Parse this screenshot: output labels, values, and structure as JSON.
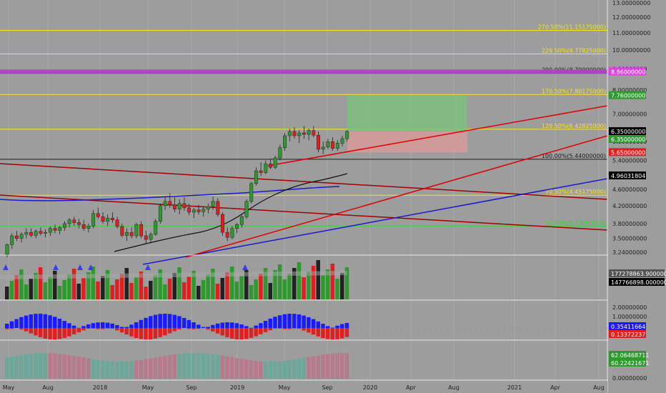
{
  "chart_data": {
    "type": "candlestick",
    "title": "",
    "price_axis": {
      "scale": "log",
      "range": [
        3.2,
        13.4
      ],
      "ticks": [
        "13.00000000",
        "12.00000000",
        "11.00000000",
        "10.00000000",
        "9.00000000",
        "8.00000000",
        "7.00000000",
        "6.00000000",
        "5.40000000",
        "4.60000000",
        "4.20000000",
        "3.80000000",
        "3.50000000",
        "3.24000000"
      ]
    },
    "time_axis": {
      "labels": [
        "May",
        "Aug",
        "2018",
        "May",
        "Sep",
        "2019",
        "May",
        "Sep",
        "2020",
        "Apr",
        "Aug",
        "2021",
        "Apr",
        "Aug"
      ]
    },
    "fib_levels": [
      {
        "label": "270.50%(11.15175000)",
        "value": 11.15175,
        "color": "#f5e61e"
      },
      {
        "label": "229.50%(9.77825000)",
        "value": 9.77825,
        "color": "#f5e61e"
      },
      {
        "label": "200.00%(8.79000000)",
        "value": 8.79,
        "color": "#1e1e1e"
      },
      {
        "label": "170.50%(7.80175000)",
        "value": 7.80175,
        "color": "#f5e61e"
      },
      {
        "label": "129.50%(6.42825000)",
        "value": 6.42825,
        "color": "#f5e61e"
      },
      {
        "label": "100.00%(5.44000000)",
        "value": 5.44,
        "color": "#1e1e1e"
      },
      {
        "label": "70.50%(4.45175000)",
        "value": 4.45175,
        "color": "#f5e61e"
      },
      {
        "label": "50.00%(3.75000000)",
        "value": 3.75,
        "color": "#3cd23c"
      }
    ],
    "price_badges": [
      {
        "label": "8.86000000",
        "value": 8.86,
        "color": "#e040e0"
      },
      {
        "label": "7.76000000",
        "value": 7.76,
        "color": "#2e9a2e"
      },
      {
        "label": "6.35000000",
        "value": 6.35,
        "color": "#000000"
      },
      {
        "label": "6.35000000",
        "value": 6.35,
        "color": "#2e9a2e"
      },
      {
        "label": "5.65000000",
        "value": 5.65,
        "color": "#e02020"
      },
      {
        "label": "4.96031804",
        "value": 4.96031804,
        "color": "#000000"
      }
    ],
    "position": {
      "entry": 6.35,
      "target": 7.76,
      "stop": 5.65
    },
    "ohlc": [
      [
        3.2,
        3.4,
        3.15,
        3.38
      ],
      [
        3.38,
        3.6,
        3.3,
        3.55
      ],
      [
        3.55,
        3.65,
        3.45,
        3.5
      ],
      [
        3.5,
        3.62,
        3.42,
        3.58
      ],
      [
        3.58,
        3.7,
        3.5,
        3.62
      ],
      [
        3.62,
        3.7,
        3.52,
        3.56
      ],
      [
        3.56,
        3.68,
        3.5,
        3.64
      ],
      [
        3.64,
        3.72,
        3.56,
        3.6
      ],
      [
        3.6,
        3.68,
        3.52,
        3.62
      ],
      [
        3.62,
        3.74,
        3.55,
        3.7
      ],
      [
        3.7,
        3.78,
        3.6,
        3.66
      ],
      [
        3.66,
        3.75,
        3.58,
        3.72
      ],
      [
        3.72,
        3.85,
        3.65,
        3.8
      ],
      [
        3.8,
        3.92,
        3.72,
        3.88
      ],
      [
        3.88,
        3.95,
        3.75,
        3.82
      ],
      [
        3.82,
        3.9,
        3.7,
        3.78
      ],
      [
        3.78,
        3.88,
        3.65,
        3.7
      ],
      [
        3.7,
        3.8,
        3.62,
        3.75
      ],
      [
        3.75,
        4.1,
        3.7,
        4.02
      ],
      [
        4.02,
        4.15,
        3.9,
        3.95
      ],
      [
        3.95,
        4.05,
        3.8,
        3.85
      ],
      [
        3.85,
        4.0,
        3.75,
        3.92
      ],
      [
        3.92,
        4.05,
        3.82,
        3.88
      ],
      [
        3.88,
        3.95,
        3.7,
        3.74
      ],
      [
        3.74,
        3.8,
        3.52,
        3.56
      ],
      [
        3.56,
        3.7,
        3.45,
        3.62
      ],
      [
        3.62,
        3.72,
        3.5,
        3.55
      ],
      [
        3.55,
        3.82,
        3.5,
        3.78
      ],
      [
        3.78,
        3.85,
        3.5,
        3.55
      ],
      [
        3.55,
        3.65,
        3.4,
        3.48
      ],
      [
        3.48,
        3.62,
        3.42,
        3.58
      ],
      [
        3.58,
        3.9,
        3.55,
        3.85
      ],
      [
        3.85,
        4.25,
        3.8,
        4.2
      ],
      [
        4.2,
        4.4,
        4.1,
        4.3
      ],
      [
        4.3,
        4.5,
        4.15,
        4.22
      ],
      [
        4.22,
        4.4,
        4.05,
        4.12
      ],
      [
        4.12,
        4.35,
        4.0,
        4.25
      ],
      [
        4.25,
        4.4,
        4.08,
        4.15
      ],
      [
        4.15,
        4.25,
        3.98,
        4.05
      ],
      [
        4.05,
        4.15,
        3.92,
        4.1
      ],
      [
        4.1,
        4.22,
        4.0,
        4.06
      ],
      [
        4.06,
        4.18,
        3.95,
        4.12
      ],
      [
        4.12,
        4.25,
        4.02,
        4.18
      ],
      [
        4.18,
        4.42,
        4.1,
        4.3
      ],
      [
        4.3,
        4.38,
        3.95,
        4.0
      ],
      [
        4.0,
        4.05,
        3.55,
        3.62
      ],
      [
        3.62,
        3.72,
        3.45,
        3.52
      ],
      [
        3.52,
        3.75,
        3.48,
        3.7
      ],
      [
        3.7,
        3.82,
        3.6,
        3.78
      ],
      [
        3.78,
        4.0,
        3.72,
        3.95
      ],
      [
        3.95,
        4.35,
        3.9,
        4.3
      ],
      [
        4.3,
        4.8,
        4.25,
        4.75
      ],
      [
        4.75,
        5.2,
        4.7,
        5.1
      ],
      [
        5.1,
        5.35,
        4.95,
        5.05
      ],
      [
        5.05,
        5.4,
        5.0,
        5.3
      ],
      [
        5.3,
        5.45,
        5.15,
        5.2
      ],
      [
        5.2,
        5.55,
        5.15,
        5.48
      ],
      [
        5.48,
        5.9,
        5.4,
        5.8
      ],
      [
        5.8,
        6.3,
        5.7,
        6.2
      ],
      [
        6.2,
        6.45,
        6.0,
        6.35
      ],
      [
        6.35,
        6.5,
        6.1,
        6.2
      ],
      [
        6.2,
        6.4,
        5.95,
        6.3
      ],
      [
        6.3,
        6.55,
        6.1,
        6.25
      ],
      [
        6.25,
        6.45,
        6.05,
        6.38
      ],
      [
        6.38,
        6.55,
        6.15,
        6.22
      ],
      [
        6.22,
        6.35,
        5.65,
        5.75
      ],
      [
        5.75,
        6.0,
        5.6,
        5.82
      ],
      [
        5.82,
        6.1,
        5.75,
        6.0
      ],
      [
        6.0,
        6.15,
        5.7,
        5.78
      ],
      [
        5.78,
        6.05,
        5.7,
        5.95
      ],
      [
        5.95,
        6.2,
        5.85,
        6.1
      ],
      [
        6.1,
        6.4,
        6.0,
        6.35
      ]
    ],
    "volume_axis": {
      "labels": [
        "177278863.90000000",
        "147766898.00000000"
      ],
      "values": [
        177278863.9,
        147766898.0
      ]
    },
    "osc1_axis": {
      "ticks": [
        "2.00000000",
        "1.00000000"
      ],
      "badges": [
        {
          "label": "0.35411664",
          "value": 0.35411664,
          "color": "#1a1aff"
        },
        {
          "label": "0.13372237",
          "value": 0.13372237,
          "color": "#e02020"
        }
      ]
    },
    "osc2_axis": {
      "badges": [
        {
          "label": "62.06468711",
          "value": 62.06468711,
          "color": "#2e9a2e"
        },
        {
          "label": "60.22421671",
          "value": 60.22421671,
          "color": "#2e9a2e"
        }
      ],
      "zero_label": "0.00000000"
    }
  }
}
